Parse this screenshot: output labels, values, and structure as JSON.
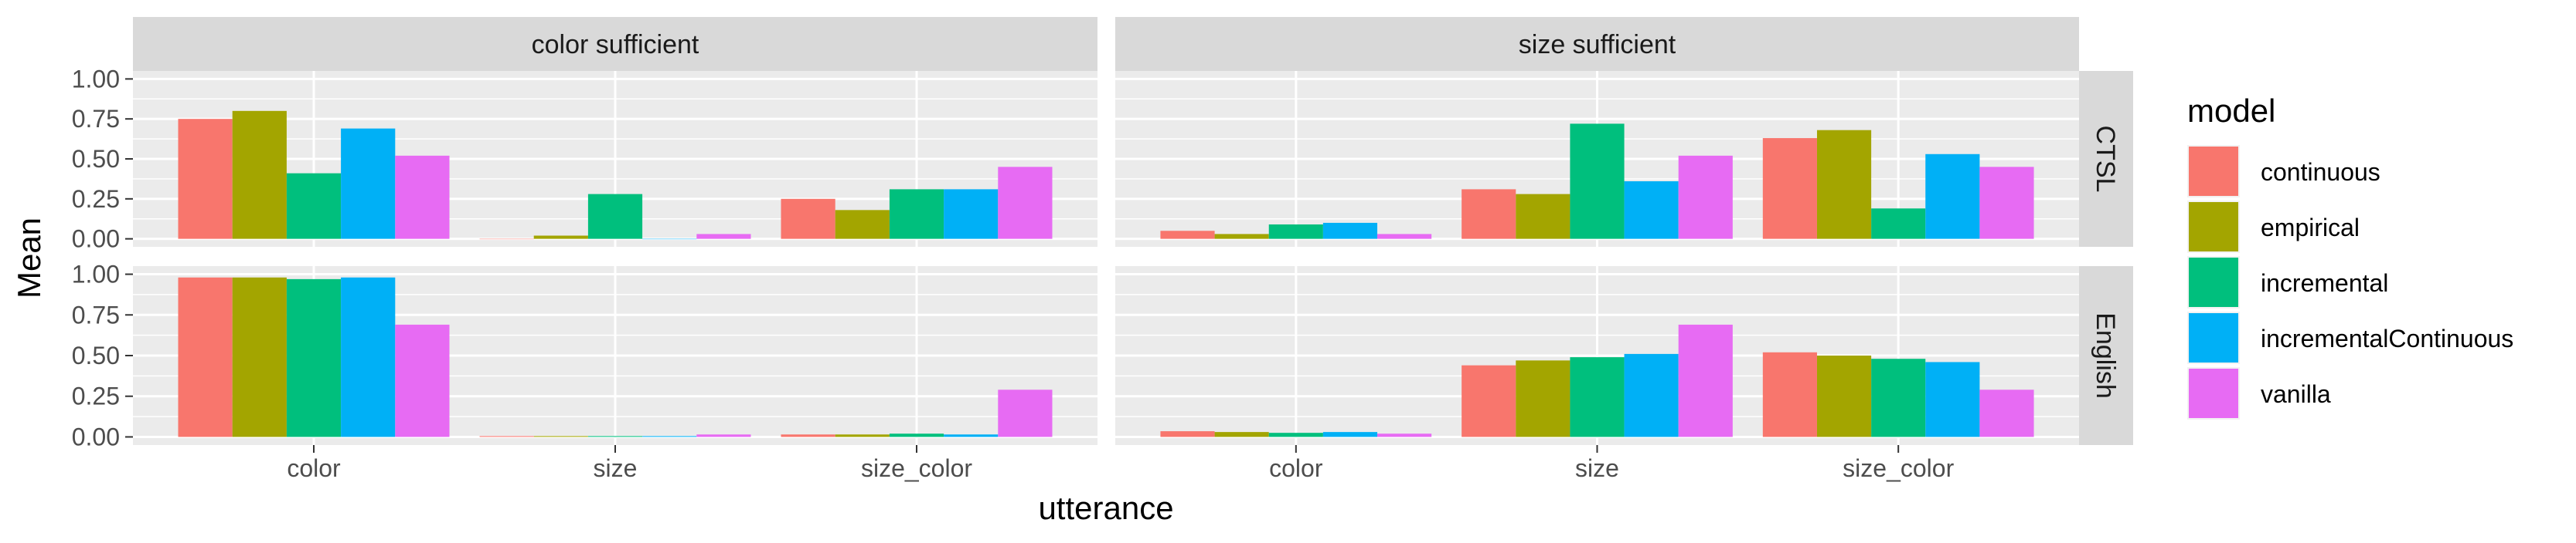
{
  "chart_data": {
    "type": "bar",
    "xlabel": "utterance",
    "ylabel": "Mean",
    "ylim": [
      0,
      1
    ],
    "yticks": [
      "0.00",
      "0.25",
      "0.50",
      "0.75",
      "1.00"
    ],
    "categories": [
      "color",
      "size",
      "size_color"
    ],
    "facet_cols": [
      "color sufficient",
      "size sufficient"
    ],
    "facet_rows": [
      "CTSL",
      "English"
    ],
    "legend": {
      "title": "model",
      "position": "right",
      "items": [
        {
          "name": "continuous",
          "color": "#F8766D"
        },
        {
          "name": "empirical",
          "color": "#A3A500"
        },
        {
          "name": "incremental",
          "color": "#00BF7D"
        },
        {
          "name": "incrementalContinuous",
          "color": "#00B0F6"
        },
        {
          "name": "vanilla",
          "color": "#E76BF3"
        }
      ]
    },
    "panels": [
      {
        "row": "CTSL",
        "col": "color sufficient",
        "series": [
          {
            "name": "continuous",
            "values": [
              0.75,
              0.0,
              0.25
            ]
          },
          {
            "name": "empirical",
            "values": [
              0.8,
              0.02,
              0.18
            ]
          },
          {
            "name": "incremental",
            "values": [
              0.41,
              0.28,
              0.31
            ]
          },
          {
            "name": "incrementalContinuous",
            "values": [
              0.69,
              0.0,
              0.31
            ]
          },
          {
            "name": "vanilla",
            "values": [
              0.52,
              0.03,
              0.45
            ]
          }
        ]
      },
      {
        "row": "CTSL",
        "col": "size sufficient",
        "series": [
          {
            "name": "continuous",
            "values": [
              0.05,
              0.31,
              0.63
            ]
          },
          {
            "name": "empirical",
            "values": [
              0.03,
              0.28,
              0.68
            ]
          },
          {
            "name": "incremental",
            "values": [
              0.09,
              0.72,
              0.19
            ]
          },
          {
            "name": "incrementalContinuous",
            "values": [
              0.1,
              0.36,
              0.53
            ]
          },
          {
            "name": "vanilla",
            "values": [
              0.03,
              0.52,
              0.45
            ]
          }
        ]
      },
      {
        "row": "English",
        "col": "color sufficient",
        "series": [
          {
            "name": "continuous",
            "values": [
              0.98,
              0.005,
              0.015
            ]
          },
          {
            "name": "empirical",
            "values": [
              0.98,
              0.005,
              0.015
            ]
          },
          {
            "name": "incremental",
            "values": [
              0.97,
              0.005,
              0.02
            ]
          },
          {
            "name": "incrementalContinuous",
            "values": [
              0.98,
              0.005,
              0.015
            ]
          },
          {
            "name": "vanilla",
            "values": [
              0.69,
              0.015,
              0.29
            ]
          }
        ]
      },
      {
        "row": "English",
        "col": "size sufficient",
        "series": [
          {
            "name": "continuous",
            "values": [
              0.035,
              0.44,
              0.52
            ]
          },
          {
            "name": "empirical",
            "values": [
              0.03,
              0.47,
              0.5
            ]
          },
          {
            "name": "incremental",
            "values": [
              0.025,
              0.49,
              0.48
            ]
          },
          {
            "name": "incrementalContinuous",
            "values": [
              0.03,
              0.51,
              0.46
            ]
          },
          {
            "name": "vanilla",
            "values": [
              0.02,
              0.69,
              0.29
            ]
          }
        ]
      }
    ]
  }
}
